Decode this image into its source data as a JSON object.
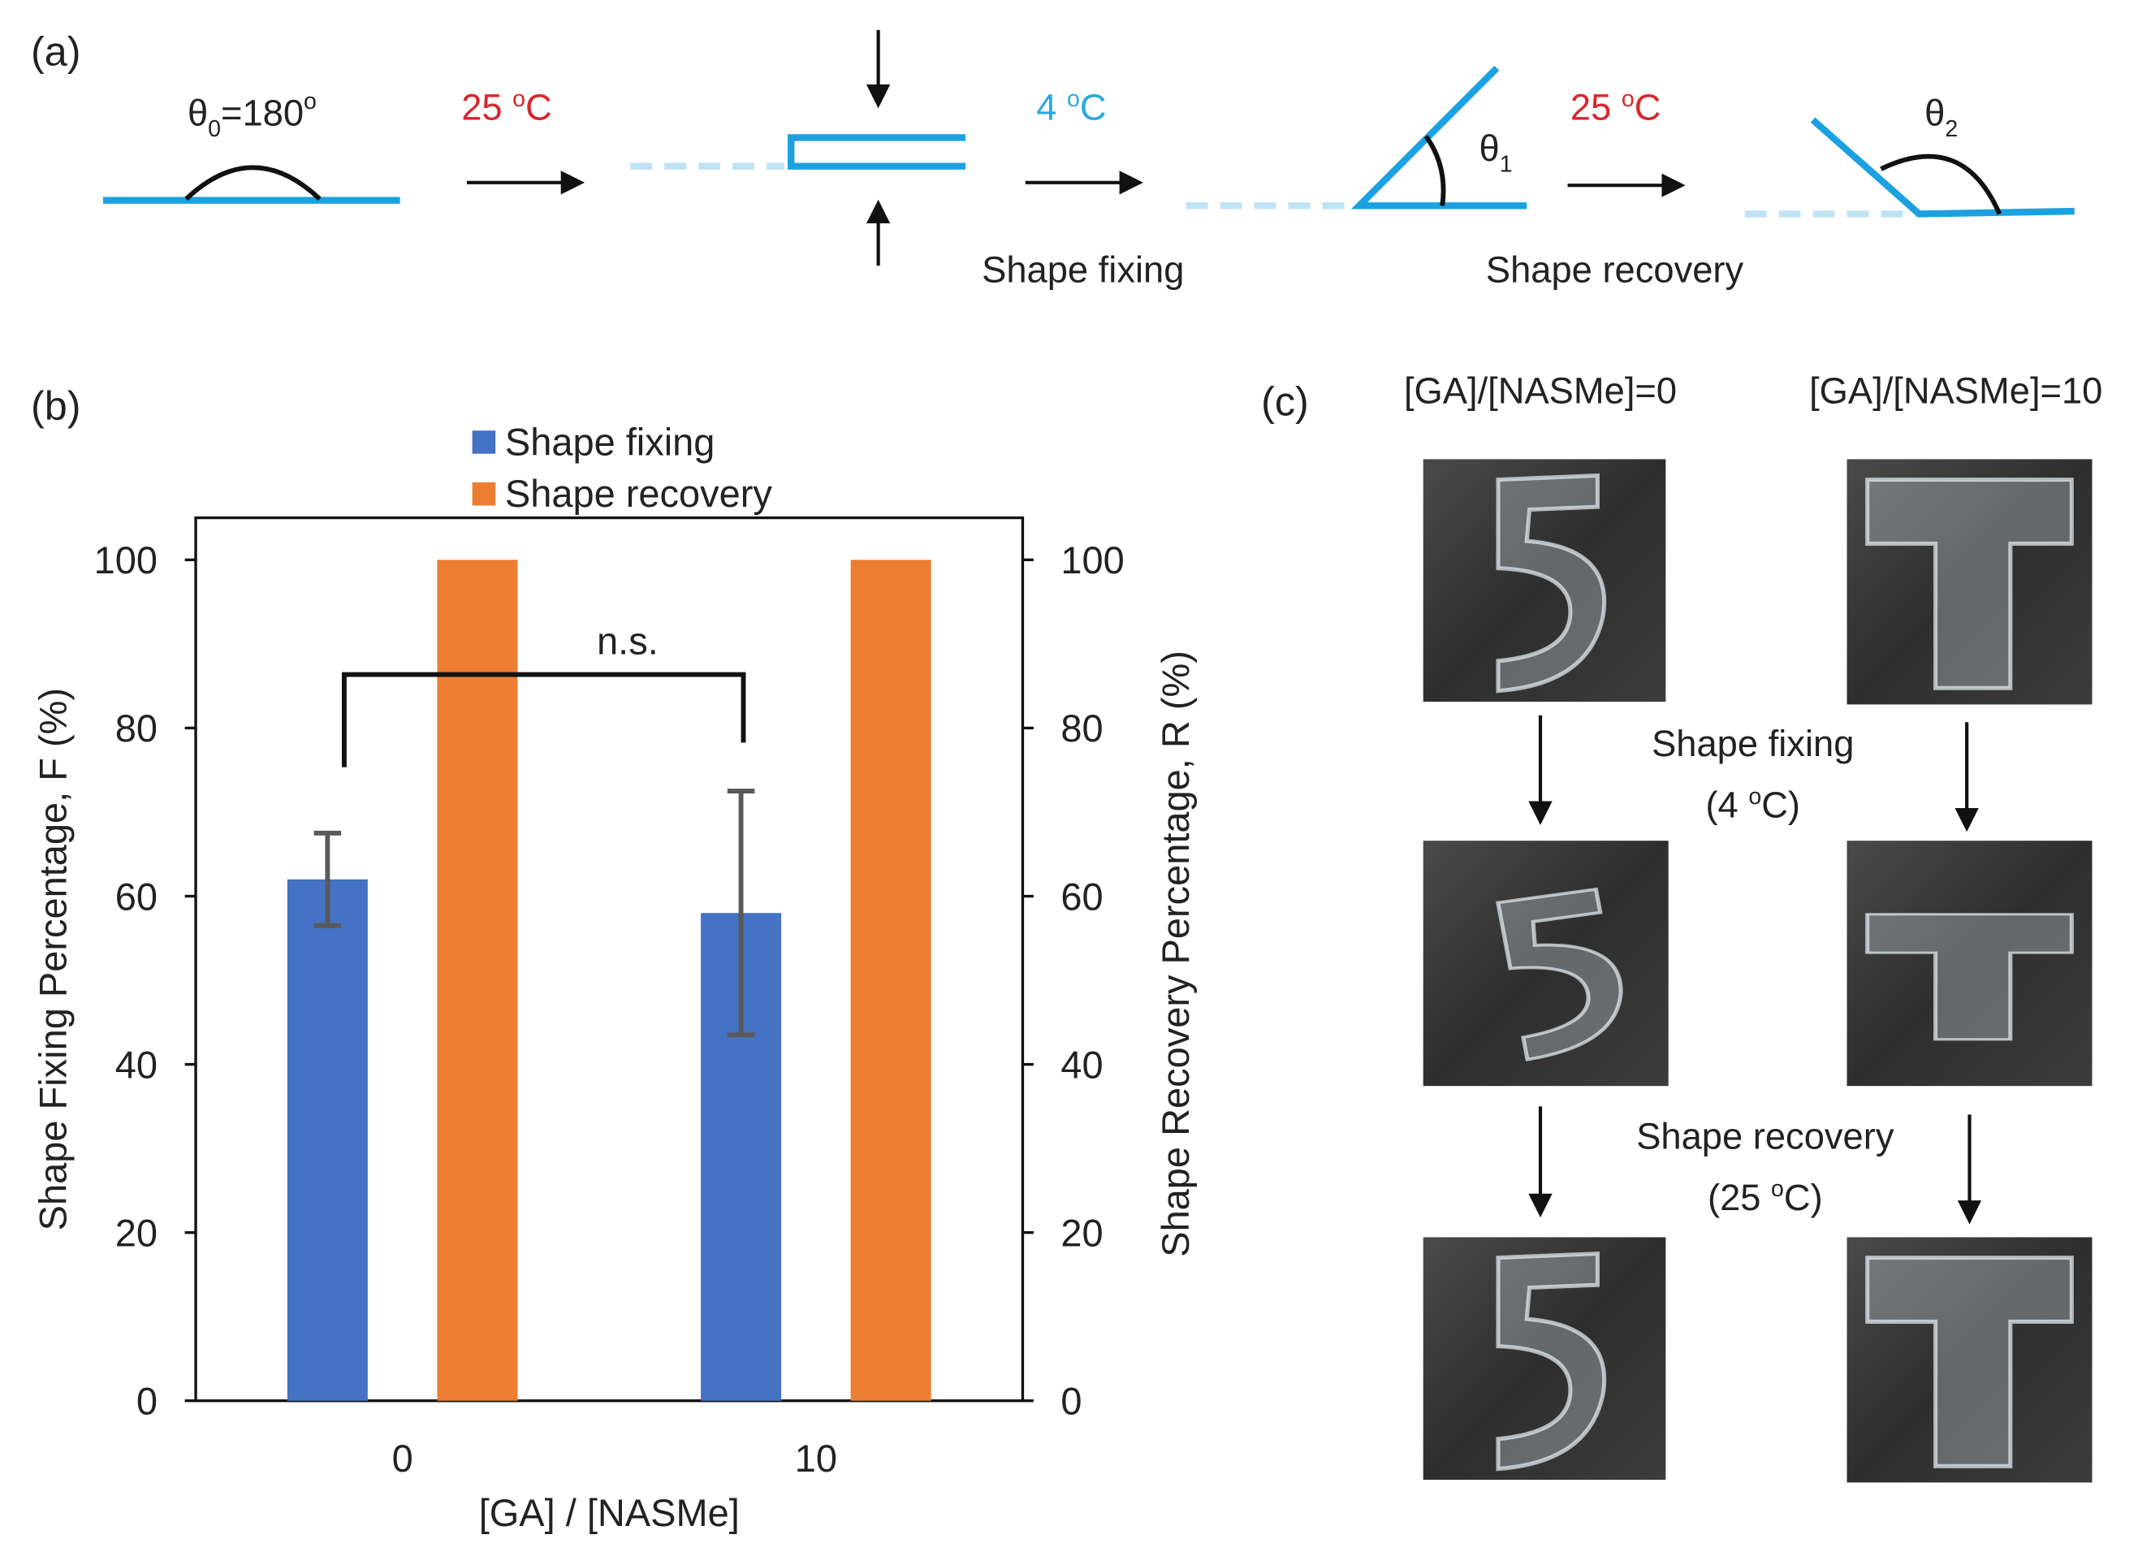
{
  "panel_a": {
    "label": "(a)",
    "theta0": [
      "θ",
      "0",
      "=180",
      "o"
    ],
    "step1_temp": [
      "25 ",
      "o",
      "C"
    ],
    "step2_temp": [
      "4 ",
      "o",
      "C"
    ],
    "step2_label": "Shape fixing",
    "theta1": [
      "θ",
      "1"
    ],
    "step3_temp": [
      "25 ",
      "o",
      "C"
    ],
    "step3_label": "Shape recovery",
    "theta2": [
      "θ",
      "2"
    ]
  },
  "panel_b_label": "(b)",
  "chart_data": {
    "type": "bar",
    "xlabel": "[GA] / [NASMe]",
    "ylabel": "Shape Fixing Percentage, F (%)",
    "y2label": "Shape Recovery Percentage, R (%)",
    "categories": [
      "0",
      "10"
    ],
    "series": [
      {
        "name": "Shape fixing",
        "color": "#4472c4",
        "values": [
          62,
          58
        ],
        "errors": [
          5.5,
          14.5
        ]
      },
      {
        "name": "Shape recovery",
        "color": "#ed7d31",
        "values": [
          100,
          100
        ],
        "axis": "y2"
      }
    ],
    "ylim": [
      0,
      105
    ],
    "yticks": [
      0,
      20,
      40,
      60,
      80,
      100
    ],
    "y2lim": [
      0,
      105
    ],
    "y2ticks": [
      0,
      20,
      40,
      60,
      80,
      100
    ],
    "legend": "top",
    "annotation": "n.s."
  },
  "panel_c": {
    "label": "(c)",
    "col1": "[GA]/[NASMe]=0",
    "col2": "[GA]/[NASMe]=10",
    "step1": "Shape fixing",
    "step1_temp": [
      "(4 ",
      "o",
      "C)"
    ],
    "step2": "Shape recovery",
    "step2_temp": [
      "(25 ",
      "o",
      "C)"
    ]
  }
}
